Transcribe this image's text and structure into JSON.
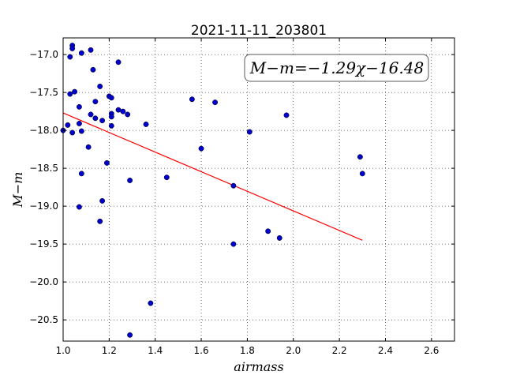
{
  "chart_data": {
    "type": "scatter",
    "title": "2021-11-11_203801",
    "xlabel": "airmass",
    "ylabel": "M−m",
    "xlim": [
      1.0,
      2.7
    ],
    "ylim": [
      -20.78,
      -16.78
    ],
    "y_inverted": true,
    "grid": true,
    "x_ticks": [
      "1.0",
      "1.2",
      "1.4",
      "1.6",
      "1.8",
      "2.0",
      "2.2",
      "2.4",
      "2.6"
    ],
    "x_tick_values": [
      1.0,
      1.2,
      1.4,
      1.6,
      1.8,
      2.0,
      2.2,
      2.4,
      2.6
    ],
    "y_ticks": [
      "−17.0",
      "−17.5",
      "−18.0",
      "−18.5",
      "−19.0",
      "−19.5",
      "−20.0",
      "−20.5"
    ],
    "y_tick_values": [
      -17.0,
      -17.5,
      -18.0,
      -18.5,
      -19.0,
      -19.5,
      -20.0,
      -20.5
    ],
    "annotation": "M−m=−1.29χ−16.48",
    "series": [
      {
        "kind": "points",
        "color": "#0000cc",
        "points": [
          [
            1.0,
            -18.0
          ],
          [
            1.02,
            -17.93
          ],
          [
            1.03,
            -17.03
          ],
          [
            1.03,
            -17.52
          ],
          [
            1.04,
            -18.03
          ],
          [
            1.04,
            -16.88
          ],
          [
            1.04,
            -16.92
          ],
          [
            1.05,
            -17.49
          ],
          [
            1.07,
            -19.01
          ],
          [
            1.07,
            -17.91
          ],
          [
            1.07,
            -17.69
          ],
          [
            1.08,
            -18.01
          ],
          [
            1.08,
            -18.57
          ],
          [
            1.08,
            -16.98
          ],
          [
            1.11,
            -18.22
          ],
          [
            1.12,
            -16.94
          ],
          [
            1.12,
            -17.79
          ],
          [
            1.13,
            -17.2
          ],
          [
            1.14,
            -17.62
          ],
          [
            1.14,
            -17.84
          ],
          [
            1.16,
            -17.42
          ],
          [
            1.16,
            -19.2
          ],
          [
            1.17,
            -17.87
          ],
          [
            1.17,
            -18.93
          ],
          [
            1.19,
            -18.43
          ],
          [
            1.2,
            -17.55
          ],
          [
            1.21,
            -17.57
          ],
          [
            1.21,
            -17.78
          ],
          [
            1.21,
            -17.82
          ],
          [
            1.21,
            -17.94
          ],
          [
            1.24,
            -17.1
          ],
          [
            1.24,
            -17.73
          ],
          [
            1.26,
            -17.75
          ],
          [
            1.28,
            -17.79
          ],
          [
            1.29,
            -18.66
          ],
          [
            1.29,
            -20.7
          ],
          [
            1.36,
            -17.92
          ],
          [
            1.38,
            -20.28
          ],
          [
            1.45,
            -18.62
          ],
          [
            1.56,
            -17.59
          ],
          [
            1.6,
            -18.24
          ],
          [
            1.66,
            -17.63
          ],
          [
            1.74,
            -18.73
          ],
          [
            1.74,
            -19.5
          ],
          [
            1.81,
            -18.02
          ],
          [
            1.89,
            -19.33
          ],
          [
            1.94,
            -19.42
          ],
          [
            1.97,
            -17.8
          ],
          [
            2.29,
            -18.35
          ],
          [
            2.3,
            -18.57
          ]
        ]
      },
      {
        "kind": "fit-line",
        "color": "#ff0000",
        "x": [
          1.0,
          2.3
        ],
        "y": [
          -17.77,
          -19.45
        ]
      }
    ]
  }
}
